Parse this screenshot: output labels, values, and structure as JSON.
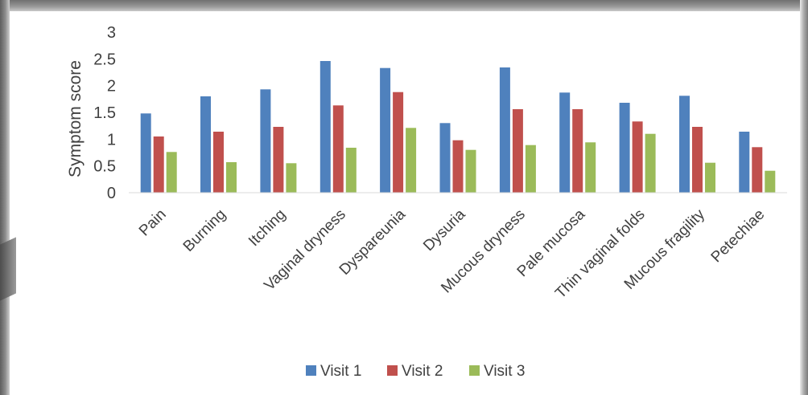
{
  "chart_data": {
    "type": "bar",
    "title": "",
    "xlabel": "",
    "ylabel": "Symptom score",
    "ylim": [
      0,
      3
    ],
    "yticks": [
      "0",
      "0.5",
      "1",
      "1.5",
      "2",
      "2.5",
      "3"
    ],
    "grid": false,
    "legend_position": "bottom",
    "categories": [
      "Pain",
      "Burning",
      "Itching",
      "Vaginal dryness",
      "Dyspareunia",
      "Dysuria",
      "Mucous dryness",
      "Pale mucosa",
      "Thin vaginal folds",
      "Mucous fragility",
      "Petechiae"
    ],
    "series": [
      {
        "name": "Visit 1",
        "color": "#4f81bd",
        "values": [
          1.48,
          1.8,
          1.93,
          2.46,
          2.33,
          1.3,
          2.34,
          1.87,
          1.68,
          1.81,
          1.14
        ]
      },
      {
        "name": "Visit 2",
        "color": "#c0504d",
        "values": [
          1.05,
          1.14,
          1.23,
          1.63,
          1.88,
          0.98,
          1.56,
          1.56,
          1.33,
          1.23,
          0.85
        ]
      },
      {
        "name": "Visit 3",
        "color": "#9bbb59",
        "values": [
          0.76,
          0.57,
          0.55,
          0.84,
          1.21,
          0.8,
          0.89,
          0.94,
          1.1,
          0.56,
          0.41
        ]
      }
    ]
  }
}
